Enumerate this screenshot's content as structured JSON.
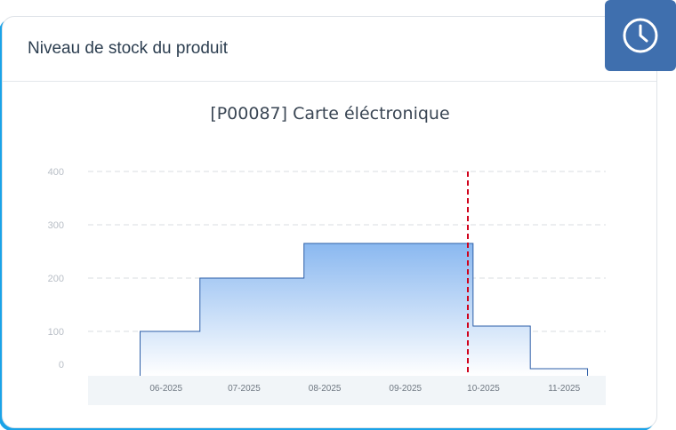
{
  "card": {
    "title": "Niveau de stock du produit"
  },
  "icons": {
    "badge": "clock-icon"
  },
  "colors": {
    "accent_border": "#1aa3e8",
    "badge_bg": "#3f6fae",
    "area_top": "#8ab8f0",
    "area_bottom": "#ffffff",
    "line": "#2e5fa8",
    "today_marker": "#d0021b"
  },
  "chart_data": {
    "type": "area",
    "title": "[P00087] Carte éléctronique",
    "step": true,
    "ylim": [
      0,
      400
    ],
    "yticks": [
      0,
      100,
      200,
      300,
      400
    ],
    "xlim": [
      "2025-05-15",
      "2025-11-30"
    ],
    "xticks": [
      "2025-06-01",
      "2025-07-01",
      "2025-08-01",
      "2025-09-01",
      "2025-10-01",
      "2025-11-01"
    ],
    "xtick_labels": [
      "06-2025",
      "07-2025",
      "08-2025",
      "09-2025",
      "10-2025",
      "11-2025"
    ],
    "grid": true,
    "today": "2025-10-08",
    "series": [
      {
        "points": [
          {
            "x": "2025-06-04",
            "y": 100
          },
          {
            "x": "2025-06-27",
            "y": 200
          },
          {
            "x": "2025-08-06",
            "y": 265
          },
          {
            "x": "2025-10-10",
            "y": 110
          },
          {
            "x": "2025-11-01",
            "y": 30
          },
          {
            "x": "2025-11-23",
            "y": 0
          }
        ]
      }
    ]
  }
}
